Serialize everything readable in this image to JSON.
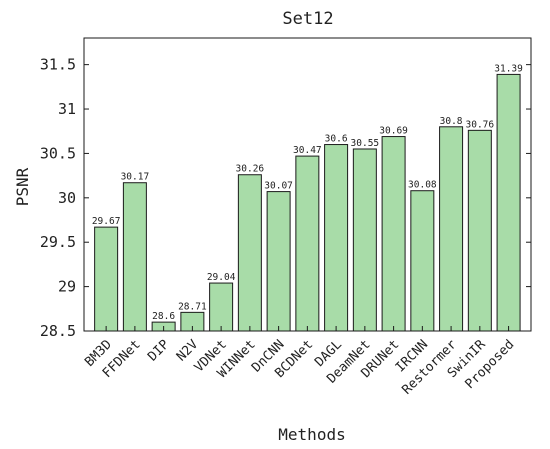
{
  "chart_data": {
    "type": "bar",
    "title": "Set12",
    "xlabel": "Methods",
    "ylabel": "PSNR",
    "ylim": [
      28.5,
      31.8
    ],
    "yticks": [
      28.5,
      29,
      29.5,
      30,
      30.5,
      31,
      31.5
    ],
    "ytick_labels": [
      "28.5",
      "29",
      "29.5",
      "30",
      "30.5",
      "31",
      "31.5"
    ],
    "grid": false,
    "bar_color": "#a8dca8",
    "edge_color": "#1a1a1a",
    "categories": [
      "BM3D",
      "FFDNet",
      "DIP",
      "N2V",
      "VDNet",
      "WINNet",
      "DnCNN",
      "BCDNet",
      "DAGL",
      "DeamNet",
      "DRUNet",
      "IRCNN",
      "Restormer",
      "SwinIR",
      "Proposed"
    ],
    "values": [
      29.67,
      30.17,
      28.6,
      28.71,
      29.04,
      30.26,
      30.07,
      30.47,
      30.6,
      30.55,
      30.69,
      30.08,
      30.8,
      30.76,
      31.39
    ],
    "value_labels": [
      "29.67",
      "30.17",
      "28.6",
      "28.71",
      "29.04",
      "30.26",
      "30.07",
      "30.47",
      "30.6",
      "30.55",
      "30.69",
      "30.08",
      "30.8",
      "30.76",
      "31.39"
    ]
  }
}
